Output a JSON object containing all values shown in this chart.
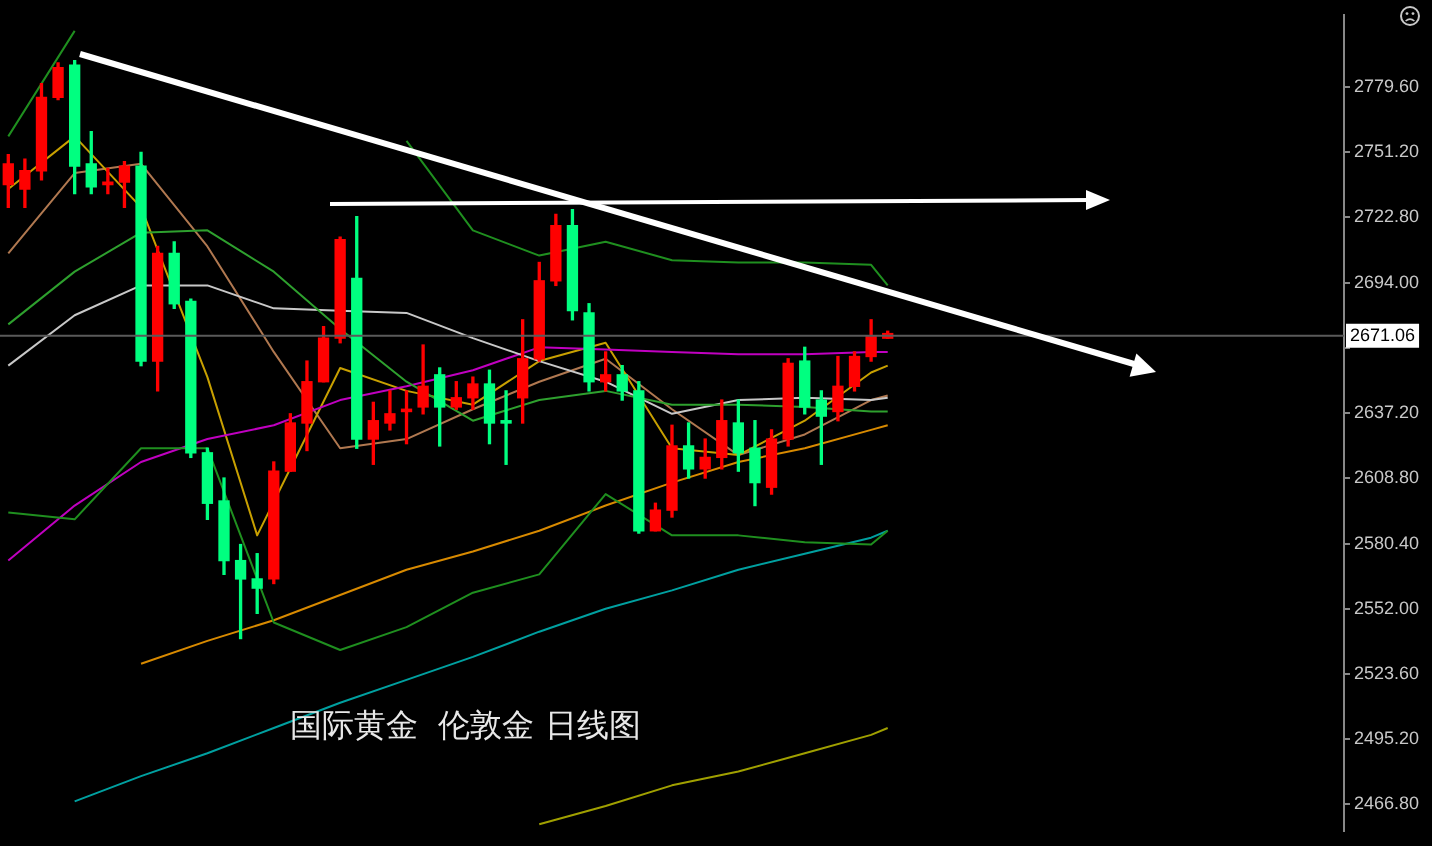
{
  "chart_data": {
    "type": "candlestick",
    "categories": [
      null,
      null,
      null,
      null,
      null,
      null,
      null,
      null,
      null,
      null,
      null,
      null,
      null,
      null,
      null,
      null,
      null,
      null,
      null,
      null,
      null,
      null,
      null,
      null,
      null,
      null,
      null,
      null,
      null,
      null,
      null,
      null,
      null,
      null,
      null,
      null,
      null,
      null,
      null,
      null,
      null,
      null,
      null,
      null,
      null,
      null,
      null,
      null,
      null,
      null,
      null,
      null,
      null,
      null,
      null,
      null,
      null,
      null,
      null,
      null,
      null,
      null,
      null,
      null,
      null,
      null,
      null,
      null,
      null,
      null,
      null,
      null,
      null,
      null,
      null,
      null,
      null,
      null,
      null,
      null,
      null
    ],
    "ohlc": [
      [
        2737,
        2750,
        2727,
        2746
      ],
      [
        2735,
        2748,
        2727,
        2743
      ],
      [
        2743,
        2781,
        2739,
        2775
      ],
      [
        2775,
        2790,
        2774,
        2788
      ],
      [
        2789,
        2791,
        2733,
        2745
      ],
      [
        2746,
        2760,
        2733,
        2736
      ],
      [
        2737,
        2744,
        2733,
        2738
      ],
      [
        2738,
        2747,
        2727,
        2745
      ],
      [
        2745,
        2751,
        2658,
        2660
      ],
      [
        2660,
        2710,
        2647,
        2707
      ],
      [
        2707,
        2712,
        2683,
        2685
      ],
      [
        2686,
        2687,
        2618,
        2620
      ],
      [
        2620,
        2622,
        2591,
        2598
      ],
      [
        2599,
        2609,
        2567,
        2573
      ],
      [
        2573,
        2580,
        2539,
        2565
      ],
      [
        2565,
        2576,
        2550,
        2561
      ],
      [
        2565,
        2616,
        2563,
        2612
      ],
      [
        2612,
        2637,
        2612,
        2633
      ],
      [
        2633,
        2660,
        2621,
        2651
      ],
      [
        2651,
        2675,
        2651,
        2670
      ],
      [
        2670,
        2714,
        2668,
        2713
      ],
      [
        2696,
        2723,
        2622,
        2626
      ],
      [
        2626,
        2642,
        2615,
        2634
      ],
      [
        2633,
        2647,
        2630,
        2637
      ],
      [
        2638,
        2647,
        2624,
        2639
      ],
      [
        2640,
        2667,
        2637,
        2649
      ],
      [
        2654,
        2657,
        2623,
        2640
      ],
      [
        2640,
        2651,
        2639,
        2644
      ],
      [
        2644,
        2653,
        2639,
        2650
      ],
      [
        2650,
        2656,
        2624,
        2633
      ],
      [
        2634,
        2647,
        2615,
        2633
      ],
      [
        2644,
        2678,
        2633,
        2661
      ],
      [
        2661,
        2703,
        2660,
        2695
      ],
      [
        2695,
        2724,
        2693,
        2719
      ],
      [
        2719,
        2726,
        2678,
        2682
      ],
      [
        2681,
        2685,
        2647,
        2651
      ],
      [
        2651,
        2664,
        2647,
        2654
      ],
      [
        2654,
        2658,
        2643,
        2647
      ],
      [
        2647,
        2651,
        2585,
        2586
      ],
      [
        2586,
        2598,
        2586,
        2595
      ],
      [
        2595,
        2632,
        2592,
        2623
      ],
      [
        2623,
        2633,
        2609,
        2613
      ],
      [
        2613,
        2626,
        2609,
        2618
      ],
      [
        2618,
        2643,
        2613,
        2634
      ],
      [
        2633,
        2643,
        2612,
        2620
      ],
      [
        2622,
        2634,
        2597,
        2607
      ],
      [
        2605,
        2630,
        2602,
        2626
      ],
      [
        2626,
        2661,
        2623,
        2659
      ],
      [
        2660,
        2666,
        2637,
        2640
      ],
      [
        2643,
        2647,
        2615,
        2636
      ],
      [
        2638,
        2662,
        2634,
        2649
      ],
      [
        2649,
        2664,
        2647,
        2662
      ],
      [
        2662,
        2678,
        2660,
        2671
      ],
      [
        2670,
        2673,
        2670,
        2672
      ],
      null,
      null,
      null,
      null,
      null,
      null,
      null,
      null,
      null,
      null,
      null,
      null,
      null,
      null,
      null,
      null,
      null,
      null,
      null,
      null,
      null,
      null,
      null,
      null,
      null,
      null,
      null
    ],
    "colors": [
      "#ff0000",
      "#ff0000",
      "#ff0000",
      "#ff0000",
      "#00ff80",
      "#00ff80",
      "#ff0000",
      "#ff0000",
      "#00ff80",
      "#ff0000",
      "#00ff80",
      "#00ff80",
      "#00ff80",
      "#00ff80",
      "#00ff80",
      "#00ff80",
      "#ff0000",
      "#ff0000",
      "#ff0000",
      "#ff0000",
      "#ff0000",
      "#00ff80",
      "#ff0000",
      "#ff0000",
      "#ff0000",
      "#ff0000",
      "#00ff80",
      "#ff0000",
      "#ff0000",
      "#00ff80",
      "#00ff80",
      "#ff0000",
      "#ff0000",
      "#ff0000",
      "#00ff80",
      "#00ff80",
      "#ff0000",
      "#00ff80",
      "#00ff80",
      "#ff0000",
      "#ff0000",
      "#00ff80",
      "#ff0000",
      "#ff0000",
      "#00ff80",
      "#00ff80",
      "#ff0000",
      "#ff0000",
      "#00ff80",
      "#00ff80",
      "#ff0000",
      "#ff0000",
      "#ff0000",
      "#ff0000",
      null,
      null,
      null,
      null,
      null,
      null,
      null,
      null,
      null,
      null,
      null,
      null,
      null,
      null,
      null,
      null,
      null,
      null,
      null,
      null,
      null,
      null,
      null,
      null,
      null,
      null,
      null
    ],
    "series": [
      {
        "type": "line",
        "color": "#1f8f1f",
        "values": [
          2758,
          null,
          null,
          null,
          2804,
          null,
          null,
          null,
          null,
          null,
          null,
          null,
          null,
          null,
          null,
          null,
          null,
          null,
          null,
          null,
          null,
          null,
          null,
          null,
          2756,
          null,
          null,
          null,
          2717,
          null,
          null,
          null,
          2706,
          null,
          null,
          null,
          2712,
          null,
          null,
          null,
          2704,
          null,
          null,
          null,
          2703,
          null,
          null,
          null,
          2703,
          null,
          null,
          null,
          2702,
          2693,
          null,
          null,
          null,
          null,
          null,
          null,
          null,
          null,
          null,
          null,
          null,
          null,
          null,
          null,
          null,
          null,
          null,
          null,
          null,
          null,
          null,
          null,
          null,
          null,
          null,
          null,
          null
        ]
      },
      {
        "type": "line",
        "color": "#1f8f1f",
        "values": [
          2594,
          null,
          null,
          null,
          2591,
          null,
          null,
          null,
          2622,
          null,
          null,
          null,
          2622,
          null,
          null,
          null,
          2546,
          null,
          null,
          null,
          2534,
          null,
          null,
          null,
          2544,
          null,
          null,
          null,
          2559,
          null,
          null,
          null,
          2567,
          null,
          null,
          null,
          2602,
          null,
          null,
          null,
          2584,
          null,
          null,
          null,
          2584,
          null,
          null,
          null,
          2581,
          null,
          null,
          null,
          2580,
          2586,
          null,
          null,
          null,
          null,
          null,
          null,
          null,
          null,
          null,
          null,
          null,
          null,
          null,
          null,
          null,
          null,
          null,
          null,
          null,
          null,
          null,
          null,
          null,
          null,
          null,
          null,
          null
        ]
      },
      {
        "type": "line",
        "color": "#2ea02e",
        "values": [
          2676,
          null,
          null,
          null,
          2699,
          null,
          null,
          null,
          2716,
          null,
          null,
          null,
          2717,
          null,
          null,
          null,
          2699,
          null,
          null,
          null,
          2674,
          null,
          null,
          null,
          2651,
          null,
          null,
          null,
          2634,
          null,
          null,
          null,
          2643,
          null,
          null,
          null,
          2647,
          null,
          null,
          null,
          2641,
          null,
          null,
          null,
          2641,
          null,
          null,
          null,
          2640,
          null,
          null,
          null,
          2638,
          2638,
          null,
          null,
          null,
          null,
          null,
          null,
          null,
          null,
          null,
          null,
          null,
          null,
          null,
          null,
          null,
          null,
          null,
          null,
          null,
          null,
          null,
          null,
          null,
          null,
          null,
          null,
          null
        ]
      },
      {
        "type": "line",
        "color": "#c8c8c8",
        "values": [
          2658,
          null,
          null,
          null,
          2680,
          null,
          null,
          null,
          2693,
          null,
          null,
          null,
          2693,
          null,
          null,
          null,
          2683,
          null,
          null,
          null,
          2682,
          null,
          null,
          null,
          2681,
          null,
          null,
          null,
          2670,
          null,
          null,
          null,
          2660,
          null,
          null,
          null,
          2651,
          null,
          null,
          null,
          2637,
          null,
          null,
          null,
          2643,
          null,
          null,
          null,
          2644,
          null,
          null,
          null,
          2643,
          2644,
          null,
          null,
          null,
          null,
          null,
          null,
          null,
          null,
          null,
          null,
          null,
          null,
          null,
          null,
          null,
          null,
          null,
          null,
          null,
          null,
          null,
          null,
          null,
          null,
          null,
          null,
          null
        ]
      },
      {
        "type": "line",
        "color": "#c000c0",
        "values": [
          2573,
          null,
          null,
          null,
          2597,
          null,
          null,
          null,
          2616,
          null,
          null,
          null,
          2626,
          null,
          null,
          null,
          2632,
          null,
          null,
          null,
          2643,
          null,
          null,
          null,
          2649,
          null,
          null,
          null,
          2656,
          null,
          null,
          null,
          2666,
          null,
          null,
          null,
          2665,
          null,
          null,
          null,
          2664,
          null,
          null,
          null,
          2663,
          null,
          null,
          null,
          2663,
          null,
          null,
          null,
          2664,
          2664,
          null,
          null,
          null,
          null,
          null,
          null,
          null,
          null,
          null,
          null,
          null,
          null,
          null,
          null,
          null,
          null,
          null,
          null,
          null,
          null,
          null,
          null,
          null,
          null,
          null,
          null,
          null
        ]
      },
      {
        "type": "line",
        "color": "#c8a000",
        "values": [
          2735,
          null,
          null,
          null,
          2758,
          null,
          null,
          null,
          2727,
          null,
          null,
          null,
          2653,
          null,
          null,
          2584,
          null,
          null,
          null,
          null,
          2657,
          null,
          null,
          null,
          2647,
          null,
          null,
          null,
          2641,
          null,
          null,
          null,
          2660,
          null,
          null,
          null,
          2668,
          null,
          null,
          null,
          2622,
          null,
          null,
          null,
          2619,
          null,
          null,
          null,
          2634,
          null,
          null,
          null,
          2655,
          2658,
          null,
          null,
          null,
          null,
          null,
          null,
          null,
          null,
          null,
          null,
          null,
          null,
          null,
          null,
          null,
          null,
          null,
          null,
          null,
          null,
          null,
          null,
          null,
          null,
          null,
          null,
          null
        ]
      },
      {
        "type": "line",
        "color": "#b07850",
        "values": [
          2707,
          null,
          null,
          null,
          2742,
          null,
          null,
          null,
          2746,
          null,
          null,
          null,
          2710,
          null,
          null,
          null,
          2664,
          null,
          null,
          null,
          2622,
          null,
          null,
          null,
          2626,
          null,
          null,
          null,
          2639,
          null,
          null,
          null,
          2651,
          null,
          null,
          null,
          2661,
          null,
          null,
          null,
          2639,
          null,
          null,
          null,
          2619,
          null,
          null,
          null,
          2628,
          null,
          null,
          null,
          2643,
          2645,
          null,
          null,
          null,
          null,
          null,
          null,
          null,
          null,
          null,
          null,
          null,
          null,
          null,
          null,
          null,
          null,
          null,
          null,
          null,
          null,
          null,
          null,
          null,
          null,
          null,
          null,
          null
        ]
      },
      {
        "type": "line",
        "color": "#d88a00",
        "values": [
          null,
          null,
          null,
          null,
          null,
          null,
          null,
          null,
          2528,
          null,
          null,
          null,
          2538,
          null,
          null,
          null,
          2547,
          null,
          null,
          null,
          2558,
          null,
          null,
          null,
          2569,
          null,
          null,
          null,
          2577,
          null,
          null,
          null,
          2586,
          null,
          null,
          null,
          2597,
          null,
          null,
          null,
          2607,
          null,
          null,
          null,
          2616,
          null,
          null,
          null,
          2622,
          null,
          null,
          null,
          2630,
          2632,
          null,
          null,
          null,
          null,
          null,
          null,
          null,
          null,
          null,
          null,
          null,
          null,
          null,
          null,
          null,
          null,
          null,
          null,
          null,
          null,
          null,
          null,
          null,
          null,
          null,
          null,
          null
        ]
      },
      {
        "type": "line",
        "color": "#00a0a0",
        "values": [
          null,
          null,
          null,
          null,
          2468,
          null,
          null,
          null,
          2479,
          null,
          null,
          null,
          2489,
          null,
          null,
          null,
          2500,
          null,
          null,
          null,
          2511,
          null,
          null,
          null,
          2521,
          null,
          null,
          null,
          2531,
          null,
          null,
          null,
          2542,
          null,
          null,
          null,
          2552,
          null,
          null,
          null,
          2560,
          null,
          null,
          null,
          2569,
          null,
          null,
          null,
          2576,
          null,
          null,
          null,
          2583,
          2586,
          null,
          null,
          null,
          null,
          null,
          null,
          null,
          null,
          null,
          null,
          null,
          null,
          null,
          null,
          null,
          null,
          null,
          null,
          null,
          null,
          null,
          null,
          null,
          null,
          null,
          null,
          null
        ]
      },
      {
        "type": "line",
        "color": "#a0a000",
        "values": [
          null,
          null,
          null,
          null,
          null,
          null,
          null,
          null,
          null,
          null,
          null,
          null,
          null,
          null,
          null,
          null,
          null,
          null,
          null,
          null,
          null,
          null,
          null,
          null,
          null,
          null,
          null,
          null,
          null,
          null,
          null,
          null,
          2458,
          null,
          null,
          null,
          2466,
          null,
          null,
          null,
          2475,
          null,
          null,
          null,
          2481,
          null,
          null,
          null,
          2489,
          null,
          null,
          null,
          2497,
          2500,
          null,
          null,
          null,
          null,
          null,
          null,
          null,
          null,
          null,
          null,
          null,
          null,
          null,
          null,
          null,
          null,
          null,
          null,
          null,
          null,
          null,
          null,
          null,
          null,
          null,
          null,
          null
        ]
      }
    ],
    "ylim": [
      2455,
      2811
    ],
    "yticks": [
      {
        "value": 2779.6,
        "label": "2779.60"
      },
      {
        "value": 2751.2,
        "label": "2751.20"
      },
      {
        "value": 2722.8,
        "label": "2722.80"
      },
      {
        "value": 2694,
        "label": "2694.00"
      },
      {
        "value": 2665.6,
        "label": null
      },
      {
        "value": 2637.2,
        "label": "2637.20"
      },
      {
        "value": 2608.8,
        "label": "2608.80"
      },
      {
        "value": 2580.4,
        "label": "2580.40"
      },
      {
        "value": 2552,
        "label": "2552.00"
      },
      {
        "value": 2523.6,
        "label": "2523.60"
      },
      {
        "value": 2495.2,
        "label": "2495.20"
      },
      {
        "value": 2466.8,
        "label": "2466.80"
      }
    ],
    "tick_labels": "y",
    "grid": false,
    "legend": false,
    "ref_lines": [
      {
        "axis": "y",
        "value": 2671.06,
        "label": "2671.06",
        "color": "#5a5a5a"
      }
    ],
    "annotations": [
      "国际黄金  伦敦金 日线图"
    ]
  }
}
